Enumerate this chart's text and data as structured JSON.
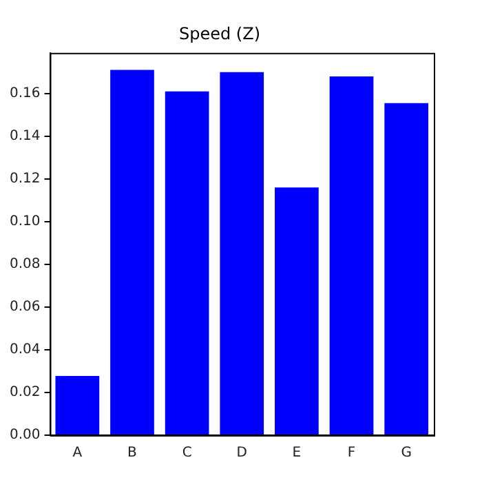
{
  "chart_data": {
    "type": "bar",
    "title": "Speed (Z)",
    "categories": [
      "A",
      "B",
      "C",
      "D",
      "E",
      "F",
      "G"
    ],
    "values": [
      0.0277,
      0.171,
      0.161,
      0.17,
      0.116,
      0.168,
      0.1555
    ],
    "color": "#0000ff",
    "ylim": [
      0,
      0.179
    ],
    "yticks": [
      {
        "value": 0,
        "label": "0.00"
      },
      0.02,
      0.04,
      0.06,
      0.08,
      {
        "value": 0.1,
        "label": "0.10"
      },
      0.12,
      0.14,
      0.16
    ],
    "grid": false
  }
}
